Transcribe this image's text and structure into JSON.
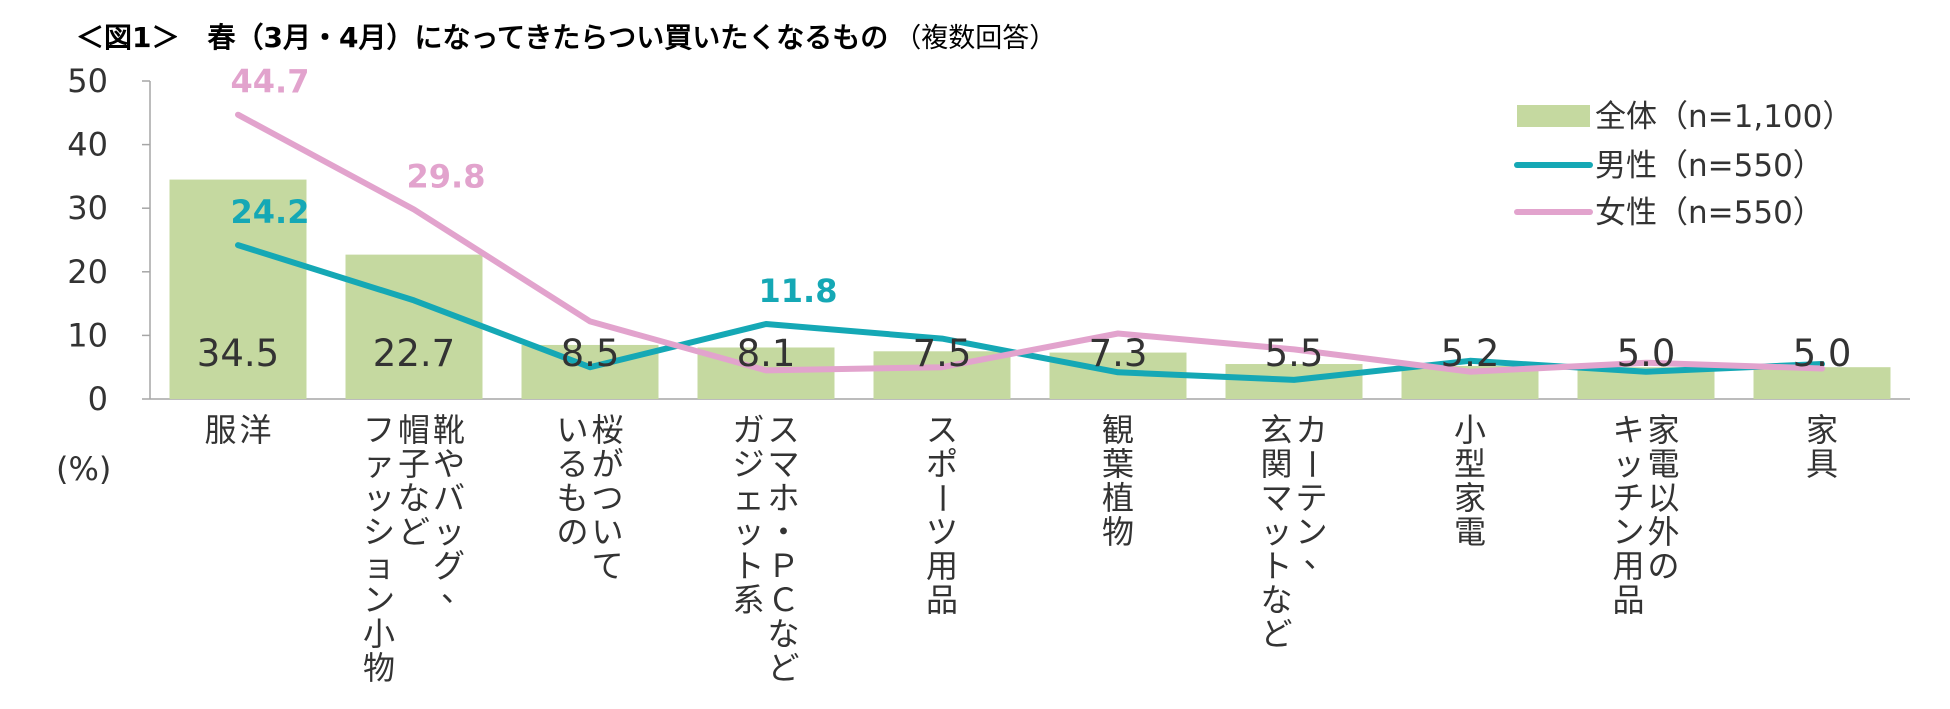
{
  "chart_data": {
    "type": "bar",
    "title": "＜図1＞　春（3月・4月）になってきたらつい買いたくなるもの",
    "subtitle": "（複数回答）",
    "ylabel": "(%)",
    "ylim": [
      0,
      50
    ],
    "yticks": [
      "0",
      "10",
      "20",
      "30",
      "40",
      "50"
    ],
    "categories": [
      [
        "洋",
        "服"
      ],
      [
        "靴やバッグ、",
        "帽子など",
        "ファッション小物"
      ],
      [
        "桜がついて",
        "いるもの"
      ],
      [
        "スマホ・ＰＣなど",
        "ガジェット系"
      ],
      [
        "スポーツ用品"
      ],
      [
        "観葉植物"
      ],
      [
        "カーテン、",
        "玄関マットなど"
      ],
      [
        "小型家電"
      ],
      [
        "家電以外の",
        "キッチン用品"
      ],
      [
        "家具"
      ]
    ],
    "series": [
      {
        "name": "全体（n=1,100）",
        "kind": "bar",
        "color": "#c5d9a0",
        "values": [
          34.5,
          22.7,
          8.5,
          8.1,
          7.5,
          7.3,
          5.5,
          5.2,
          5.0,
          5.0
        ],
        "labels": [
          "34.5",
          "22.7",
          "8.5",
          "8.1",
          "7.5",
          "7.3",
          "5.5",
          "5.2",
          "5.0",
          "5.0"
        ]
      },
      {
        "name": "男性（n=550）",
        "kind": "line",
        "color": "#15a8b5",
        "values": [
          24.2,
          15.5,
          5.0,
          11.8,
          9.5,
          4.2,
          3.0,
          6.0,
          4.3,
          5.5
        ],
        "labels": [
          "24.2",
          "",
          "",
          "11.8",
          "",
          "",
          "",
          "",
          "",
          ""
        ]
      },
      {
        "name": "女性（n=550）",
        "kind": "line",
        "color": "#e2a3cd",
        "values": [
          44.7,
          29.8,
          12.2,
          4.5,
          5.0,
          10.3,
          7.8,
          4.3,
          5.7,
          4.8
        ],
        "labels": [
          "44.7",
          "29.8",
          "",
          "",
          "",
          "",
          "",
          "",
          "",
          ""
        ]
      }
    ],
    "legend": "top-right",
    "grid": false
  }
}
